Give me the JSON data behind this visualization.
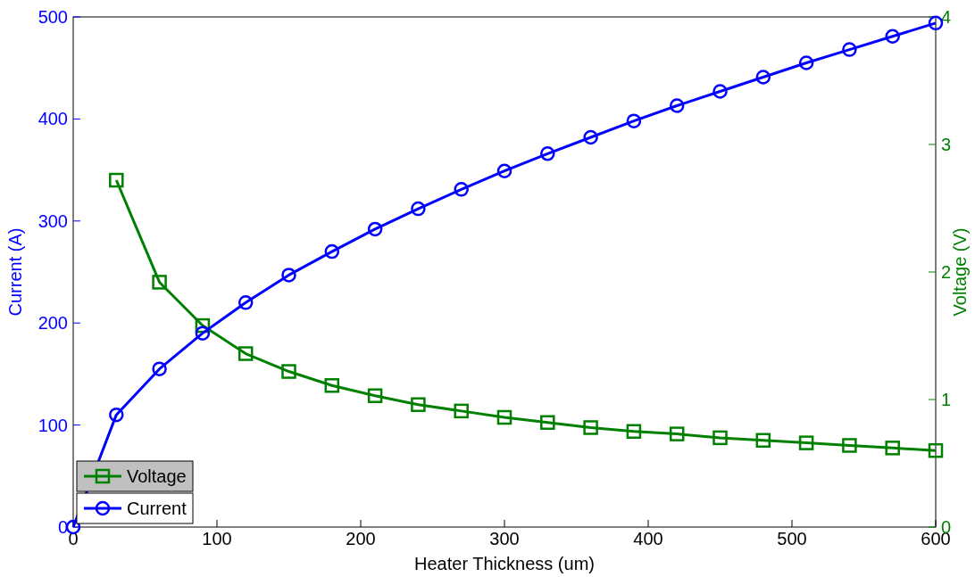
{
  "chart_data": {
    "type": "line",
    "xlabel": "Heater Thickness (um)",
    "ylabel": "Current (A)",
    "y2label": "Voltage (V)",
    "xlim": [
      0,
      600
    ],
    "xticks": [
      0,
      100,
      200,
      300,
      400,
      500,
      600
    ],
    "ylim": [
      0,
      500
    ],
    "yticks": [
      0,
      100,
      200,
      300,
      400,
      500
    ],
    "y2lim": [
      0,
      4
    ],
    "y2ticks": [
      0,
      1,
      2,
      3,
      4
    ],
    "grid": false,
    "legend": "bottom left",
    "line_style": "solid",
    "series": [
      {
        "name": "Voltage",
        "color": "#008000",
        "axis": "y2",
        "marker": "square",
        "x": [
          30,
          60,
          90,
          120,
          150,
          180,
          210,
          240,
          270,
          300,
          330,
          360,
          390,
          420,
          450,
          480,
          510,
          540,
          570,
          600
        ],
        "values": [
          2.72,
          1.92,
          1.58,
          1.36,
          1.22,
          1.11,
          1.03,
          0.96,
          0.91,
          0.86,
          0.82,
          0.78,
          0.75,
          0.73,
          0.7,
          0.68,
          0.66,
          0.64,
          0.62,
          0.6
        ]
      },
      {
        "name": "Current",
        "color": "#0000ff",
        "axis": "y",
        "marker": "circle",
        "x": [
          0,
          30,
          60,
          90,
          120,
          150,
          180,
          210,
          240,
          270,
          300,
          330,
          360,
          390,
          420,
          450,
          480,
          510,
          540,
          570,
          600
        ],
        "values": [
          0,
          110,
          155,
          190,
          220,
          247,
          270,
          292,
          312,
          331,
          349,
          366,
          382,
          398,
          413,
          427,
          441,
          455,
          468,
          481,
          494
        ]
      }
    ]
  }
}
